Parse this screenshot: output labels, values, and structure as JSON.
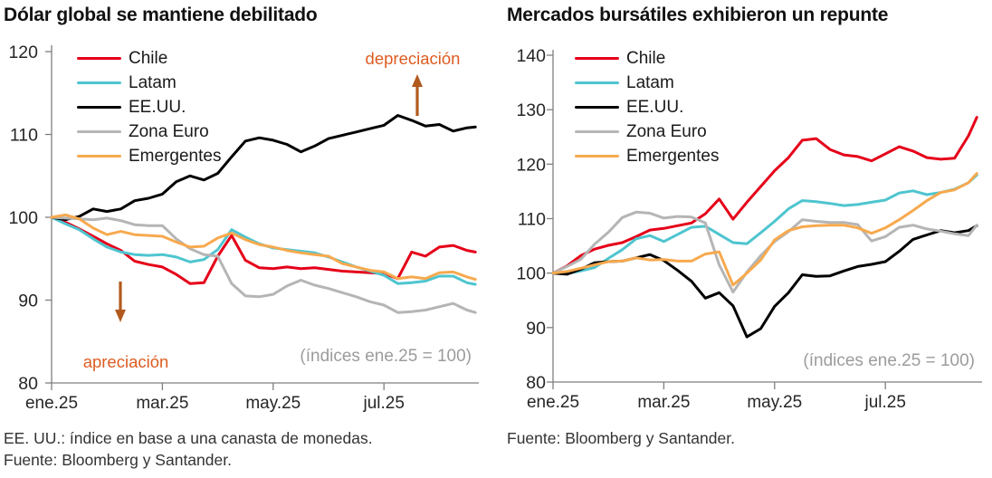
{
  "colors": {
    "chile": "#e50019",
    "latam": "#4ec5cf",
    "eeuu": "#000000",
    "zona_euro": "#b5b5b5",
    "emergentes": "#f7a94e",
    "annotation_text": "#dd5c21",
    "annotation_arrow": "#b15a1e",
    "axis": "#7f7f7f",
    "tick_label": "#262626",
    "note": "#9c9c9c"
  },
  "footnotes": {
    "left": [
      "EE. UU.: índice en base a una canasta de monedas.",
      "Fuente: Bloomberg y Santander."
    ],
    "right": [
      "Fuente: Bloomberg y Santander."
    ]
  },
  "chart_data": [
    {
      "id": "global-dollar",
      "type": "line",
      "title": "Dólar global se mantiene debilitado",
      "note": "(índices ene.25 = 100)",
      "x_unit": "months since ene.25",
      "xtick_labels": [
        "ene.25",
        "mar.25",
        "may.25",
        "jul.25"
      ],
      "xtick_months": [
        0,
        2,
        4,
        6
      ],
      "ylim": [
        80,
        120
      ],
      "yticks": [
        80,
        90,
        100,
        110,
        120
      ],
      "grid": false,
      "legend_position": "top-left",
      "annotations": [
        {
          "text": "depreciación",
          "direction": "up"
        },
        {
          "text": "apreciación",
          "direction": "down"
        }
      ],
      "x": [
        0,
        0.25,
        0.5,
        0.75,
        1,
        1.25,
        1.5,
        1.75,
        2,
        2.25,
        2.5,
        2.75,
        3,
        3.25,
        3.5,
        3.75,
        4,
        4.25,
        4.5,
        4.75,
        5,
        5.25,
        5.5,
        5.75,
        6,
        6.25,
        6.5,
        6.75,
        7,
        7.25,
        7.5,
        7.65
      ],
      "series": [
        {
          "name": "Chile",
          "color": "#e50019",
          "values": [
            100,
            99.4,
            98.6,
            97.7,
            96.8,
            96,
            94.7,
            94.3,
            94,
            93.1,
            92,
            92.1,
            95.3,
            97.8,
            94.8,
            93.9,
            93.8,
            94,
            93.8,
            93.9,
            93.7,
            93.5,
            93.4,
            93.3,
            93.2,
            92.6,
            95.8,
            95.3,
            96.4,
            96.6,
            96,
            95.8
          ]
        },
        {
          "name": "Latam",
          "color": "#4ec5cf",
          "values": [
            100,
            99.2,
            98.5,
            97.4,
            96.4,
            95.8,
            95.5,
            95.4,
            95.5,
            95.2,
            94.6,
            94.9,
            96.1,
            98.5,
            97.6,
            96.8,
            96.3,
            96.1,
            95.9,
            95.7,
            95.2,
            94.6,
            94,
            93.5,
            93,
            92,
            92.1,
            92.3,
            92.9,
            92.9,
            92.1,
            91.9
          ]
        },
        {
          "name": "EE.UU.",
          "color": "#000000",
          "values": [
            100,
            99.7,
            100.1,
            101,
            100.7,
            101,
            102,
            102.3,
            102.8,
            104.3,
            105,
            104.5,
            105.3,
            107.3,
            109.2,
            109.6,
            109.3,
            108.8,
            107.9,
            108.6,
            109.5,
            109.9,
            110.3,
            110.7,
            111.1,
            112.3,
            111.7,
            111,
            111.2,
            110.4,
            110.8,
            110.9
          ]
        },
        {
          "name": "Zona Euro",
          "color": "#b5b5b5",
          "values": [
            100,
            99.9,
            99.8,
            99.7,
            99.9,
            99.6,
            99.1,
            99,
            99,
            97.4,
            96.2,
            95.5,
            95.3,
            92,
            90.5,
            90.4,
            90.7,
            91.7,
            92.4,
            91.8,
            91.4,
            90.9,
            90.4,
            89.8,
            89.4,
            88.5,
            88.6,
            88.8,
            89.2,
            89.6,
            88.8,
            88.5
          ]
        },
        {
          "name": "Emergentes",
          "color": "#f7a94e",
          "values": [
            100,
            100.3,
            99.8,
            98.7,
            97.9,
            98.3,
            97.9,
            97.8,
            97.7,
            97,
            96.4,
            96.5,
            97.5,
            98.1,
            97.3,
            96.7,
            96.4,
            96,
            95.7,
            95.5,
            95.3,
            94.4,
            94,
            93.6,
            93.4,
            92.6,
            92.8,
            92.6,
            93.3,
            93.4,
            92.8,
            92.5
          ]
        }
      ]
    },
    {
      "id": "equity-markets",
      "type": "line",
      "title": "Mercados bursátiles exhibieron un repunte",
      "note": "(índices ene.25 = 100)",
      "x_unit": "months since ene.25",
      "xtick_labels": [
        "ene.25",
        "mar.25",
        "may.25",
        "jul.25"
      ],
      "xtick_months": [
        0,
        2,
        4,
        6
      ],
      "ylim": [
        80,
        140
      ],
      "yticks": [
        80,
        90,
        100,
        110,
        120,
        130,
        140
      ],
      "grid": false,
      "legend_position": "top-left",
      "annotations": [],
      "x": [
        0,
        0.25,
        0.5,
        0.75,
        1,
        1.25,
        1.5,
        1.75,
        2,
        2.25,
        2.5,
        2.75,
        3,
        3.25,
        3.5,
        3.75,
        4,
        4.25,
        4.5,
        4.75,
        5,
        5.25,
        5.5,
        5.75,
        6,
        6.25,
        6.5,
        6.75,
        7,
        7.25,
        7.5,
        7.65
      ],
      "series": [
        {
          "name": "Chile",
          "color": "#e50019",
          "values": [
            100,
            101.3,
            103.2,
            104.4,
            105.1,
            105.6,
            106.7,
            107.9,
            108.2,
            108.7,
            109.2,
            110.9,
            113.6,
            109.9,
            113,
            115.9,
            118.8,
            121.2,
            124.4,
            124.7,
            122.7,
            121.7,
            121.4,
            120.6,
            121.9,
            123.2,
            122.4,
            121.2,
            120.9,
            121.1,
            125.2,
            128.6
          ]
        },
        {
          "name": "Latam",
          "color": "#4ec5cf",
          "values": [
            100,
            99.9,
            100.4,
            101,
            102.7,
            104.3,
            106.3,
            106.9,
            105.8,
            107.1,
            108.4,
            108.6,
            107.1,
            105.6,
            105.4,
            107.4,
            109.5,
            111.8,
            113.3,
            113.1,
            112.8,
            112.4,
            112.6,
            113,
            113.4,
            114.7,
            115.1,
            114.4,
            114.8,
            115.4,
            116.6,
            118
          ]
        },
        {
          "name": "EE.UU.",
          "color": "#000000",
          "values": [
            100,
            99.8,
            100.7,
            101.9,
            102.1,
            102.2,
            102.8,
            103.4,
            102.3,
            100.5,
            98.5,
            95.4,
            96.4,
            94,
            88.3,
            89.8,
            93.9,
            96.4,
            99.7,
            99.4,
            99.5,
            100.4,
            101.2,
            101.6,
            102.1,
            104,
            106.2,
            107,
            107.8,
            107.4,
            107.8,
            108.7
          ]
        },
        {
          "name": "Zona Euro",
          "color": "#b5b5b5",
          "values": [
            100,
            101.2,
            102.5,
            105.3,
            107.5,
            110.2,
            111.2,
            111,
            110.1,
            110.4,
            110.3,
            109.2,
            101.5,
            96.5,
            100.2,
            103.2,
            105.8,
            107.6,
            109.8,
            109.5,
            109.3,
            109.3,
            108.9,
            105.9,
            106.7,
            108.4,
            108.8,
            108.1,
            107.7,
            107.2,
            106.9,
            108.8
          ]
        },
        {
          "name": "Emergentes",
          "color": "#f7a94e",
          "values": [
            100,
            100.3,
            100.9,
            101.5,
            102.1,
            102.2,
            102.8,
            102.4,
            102.5,
            102.2,
            102.2,
            103.5,
            103.9,
            97.8,
            100,
            102.4,
            106.1,
            107.8,
            108.5,
            108.7,
            108.8,
            108.8,
            108.3,
            107.3,
            108.3,
            109.8,
            111.5,
            113.3,
            114.8,
            115.3,
            116.6,
            118.3
          ]
        }
      ]
    }
  ]
}
